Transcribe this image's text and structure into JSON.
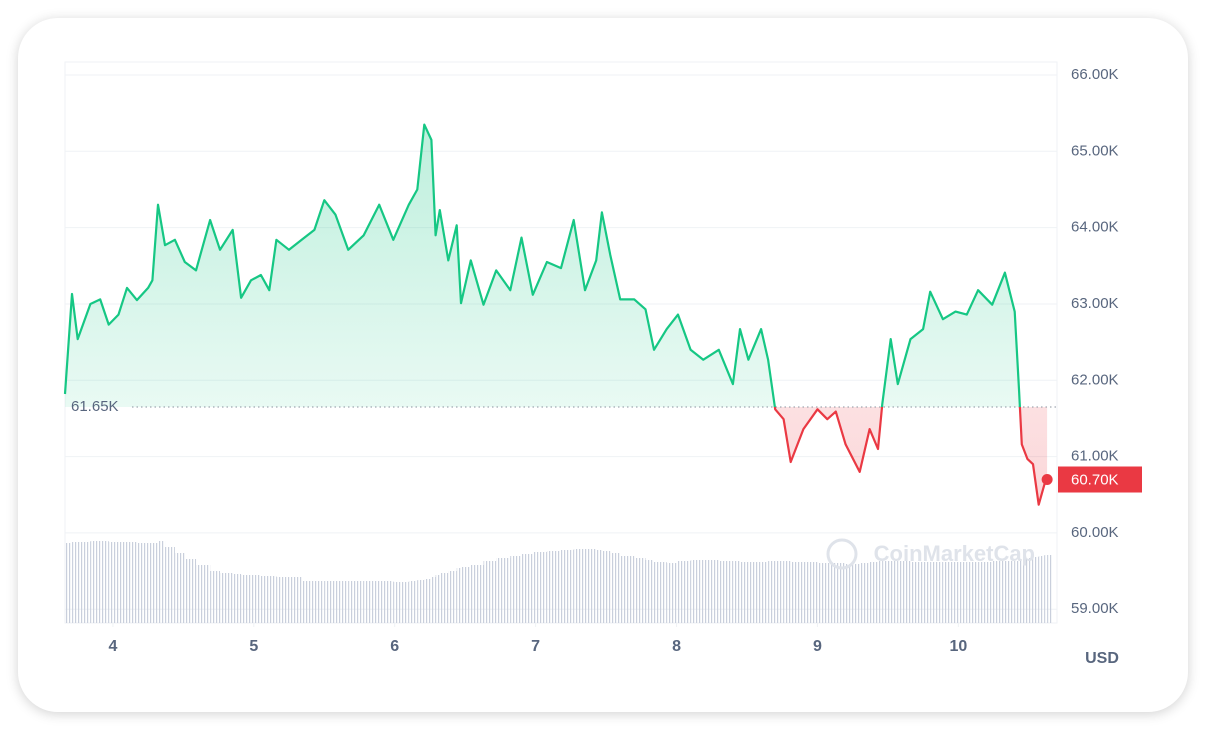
{
  "chart_data": {
    "type": "line",
    "x": [
      3.66,
      3.71,
      3.75,
      3.84,
      3.91,
      3.97,
      4.04,
      4.1,
      4.17,
      4.25,
      4.28,
      4.32,
      4.37,
      4.44,
      4.51,
      4.59,
      4.69,
      4.76,
      4.85,
      4.91,
      4.98,
      5.05,
      5.11,
      5.16,
      5.25,
      5.34,
      5.43,
      5.5,
      5.58,
      5.67,
      5.78,
      5.89,
      5.99,
      6.1,
      6.16,
      6.21,
      6.26,
      6.29,
      6.32,
      6.38,
      6.44,
      6.47,
      6.54,
      6.63,
      6.72,
      6.82,
      6.9,
      6.98,
      7.08,
      7.18,
      7.27,
      7.35,
      7.43,
      7.47,
      7.53,
      7.6,
      7.7,
      7.78,
      7.84,
      7.93,
      8.01,
      8.1,
      8.19,
      8.3,
      8.4,
      8.45,
      8.51,
      8.6,
      8.65,
      8.7,
      8.76,
      8.81,
      8.9,
      9.0,
      9.07,
      9.13,
      9.2,
      9.3,
      9.37,
      9.43,
      9.46,
      9.52,
      9.57,
      9.66,
      9.75,
      9.8,
      9.89,
      9.98,
      10.06,
      10.14,
      10.24,
      10.33,
      10.4,
      10.43,
      10.45,
      10.49,
      10.53,
      10.57,
      10.61,
      10.63
    ],
    "values": [
      61820,
      63130,
      62540,
      63000,
      63060,
      62730,
      62860,
      63210,
      63050,
      63210,
      63310,
      64300,
      63770,
      63840,
      63550,
      63440,
      64100,
      63710,
      63970,
      63080,
      63310,
      63380,
      63180,
      63840,
      63710,
      63840,
      63970,
      64360,
      64170,
      63710,
      63900,
      64300,
      63840,
      64300,
      64500,
      65350,
      65150,
      63900,
      64230,
      63570,
      64030,
      63010,
      63570,
      62990,
      63440,
      63180,
      63870,
      63120,
      63550,
      63470,
      64100,
      63180,
      63570,
      64200,
      63640,
      63060,
      63060,
      62930,
      62400,
      62670,
      62860,
      62400,
      62270,
      62400,
      61950,
      62670,
      62270,
      62670,
      62270,
      61620,
      61490,
      60930,
      61360,
      61620,
      61490,
      61590,
      61160,
      60800,
      61360,
      61100,
      61690,
      62540,
      61950,
      62540,
      62670,
      63160,
      62800,
      62900,
      62860,
      63180,
      62990,
      63410,
      62900,
      61880,
      61160,
      60970,
      60900,
      60370,
      60630,
      60700
    ],
    "volume": [
      80,
      81,
      81,
      82,
      82,
      81,
      81,
      81,
      80,
      80,
      80,
      82,
      76,
      70,
      64,
      58,
      52,
      50,
      49,
      48,
      48,
      47,
      47,
      46,
      46,
      42,
      42,
      42,
      42,
      42,
      42,
      42,
      41,
      42,
      43,
      44,
      46,
      48,
      50,
      52,
      55,
      56,
      58,
      62,
      65,
      67,
      69,
      71,
      72,
      73,
      74,
      74,
      73,
      72,
      70,
      67,
      65,
      63,
      61,
      60,
      62,
      63,
      63,
      62,
      62,
      61,
      61,
      61,
      62,
      62,
      62,
      61,
      61,
      60,
      60,
      60,
      59,
      60,
      61,
      62,
      62,
      62,
      62,
      61,
      61,
      61,
      61,
      61,
      61,
      61,
      62,
      62,
      62,
      63,
      64,
      65,
      66,
      67,
      68,
      68
    ],
    "color_up": "#16c784",
    "color_down": "#ea3943",
    "xlim": [
      3.66,
      10.7
    ],
    "xticks": [
      4,
      5,
      6,
      7,
      8,
      9,
      10
    ],
    "ylim": [
      58820,
      66170
    ],
    "yticks": [
      {
        "value": 59000,
        "label": "59.00K"
      },
      {
        "value": 60000,
        "label": "60.00K"
      },
      {
        "value": 61000,
        "label": "61.00K"
      },
      {
        "value": 62000,
        "label": "62.00K"
      },
      {
        "value": 63000,
        "label": "63.00K"
      },
      {
        "value": 64000,
        "label": "64.00K"
      },
      {
        "value": 65000,
        "label": "65.00K"
      },
      {
        "value": 66000,
        "label": "66.00K"
      }
    ],
    "grid": true,
    "reference": {
      "value": 61650,
      "label": "61.65K"
    },
    "last_price": {
      "value": 60700,
      "label": "60.70K"
    },
    "currency_label": "USD",
    "watermark": "CoinMarketCap"
  }
}
